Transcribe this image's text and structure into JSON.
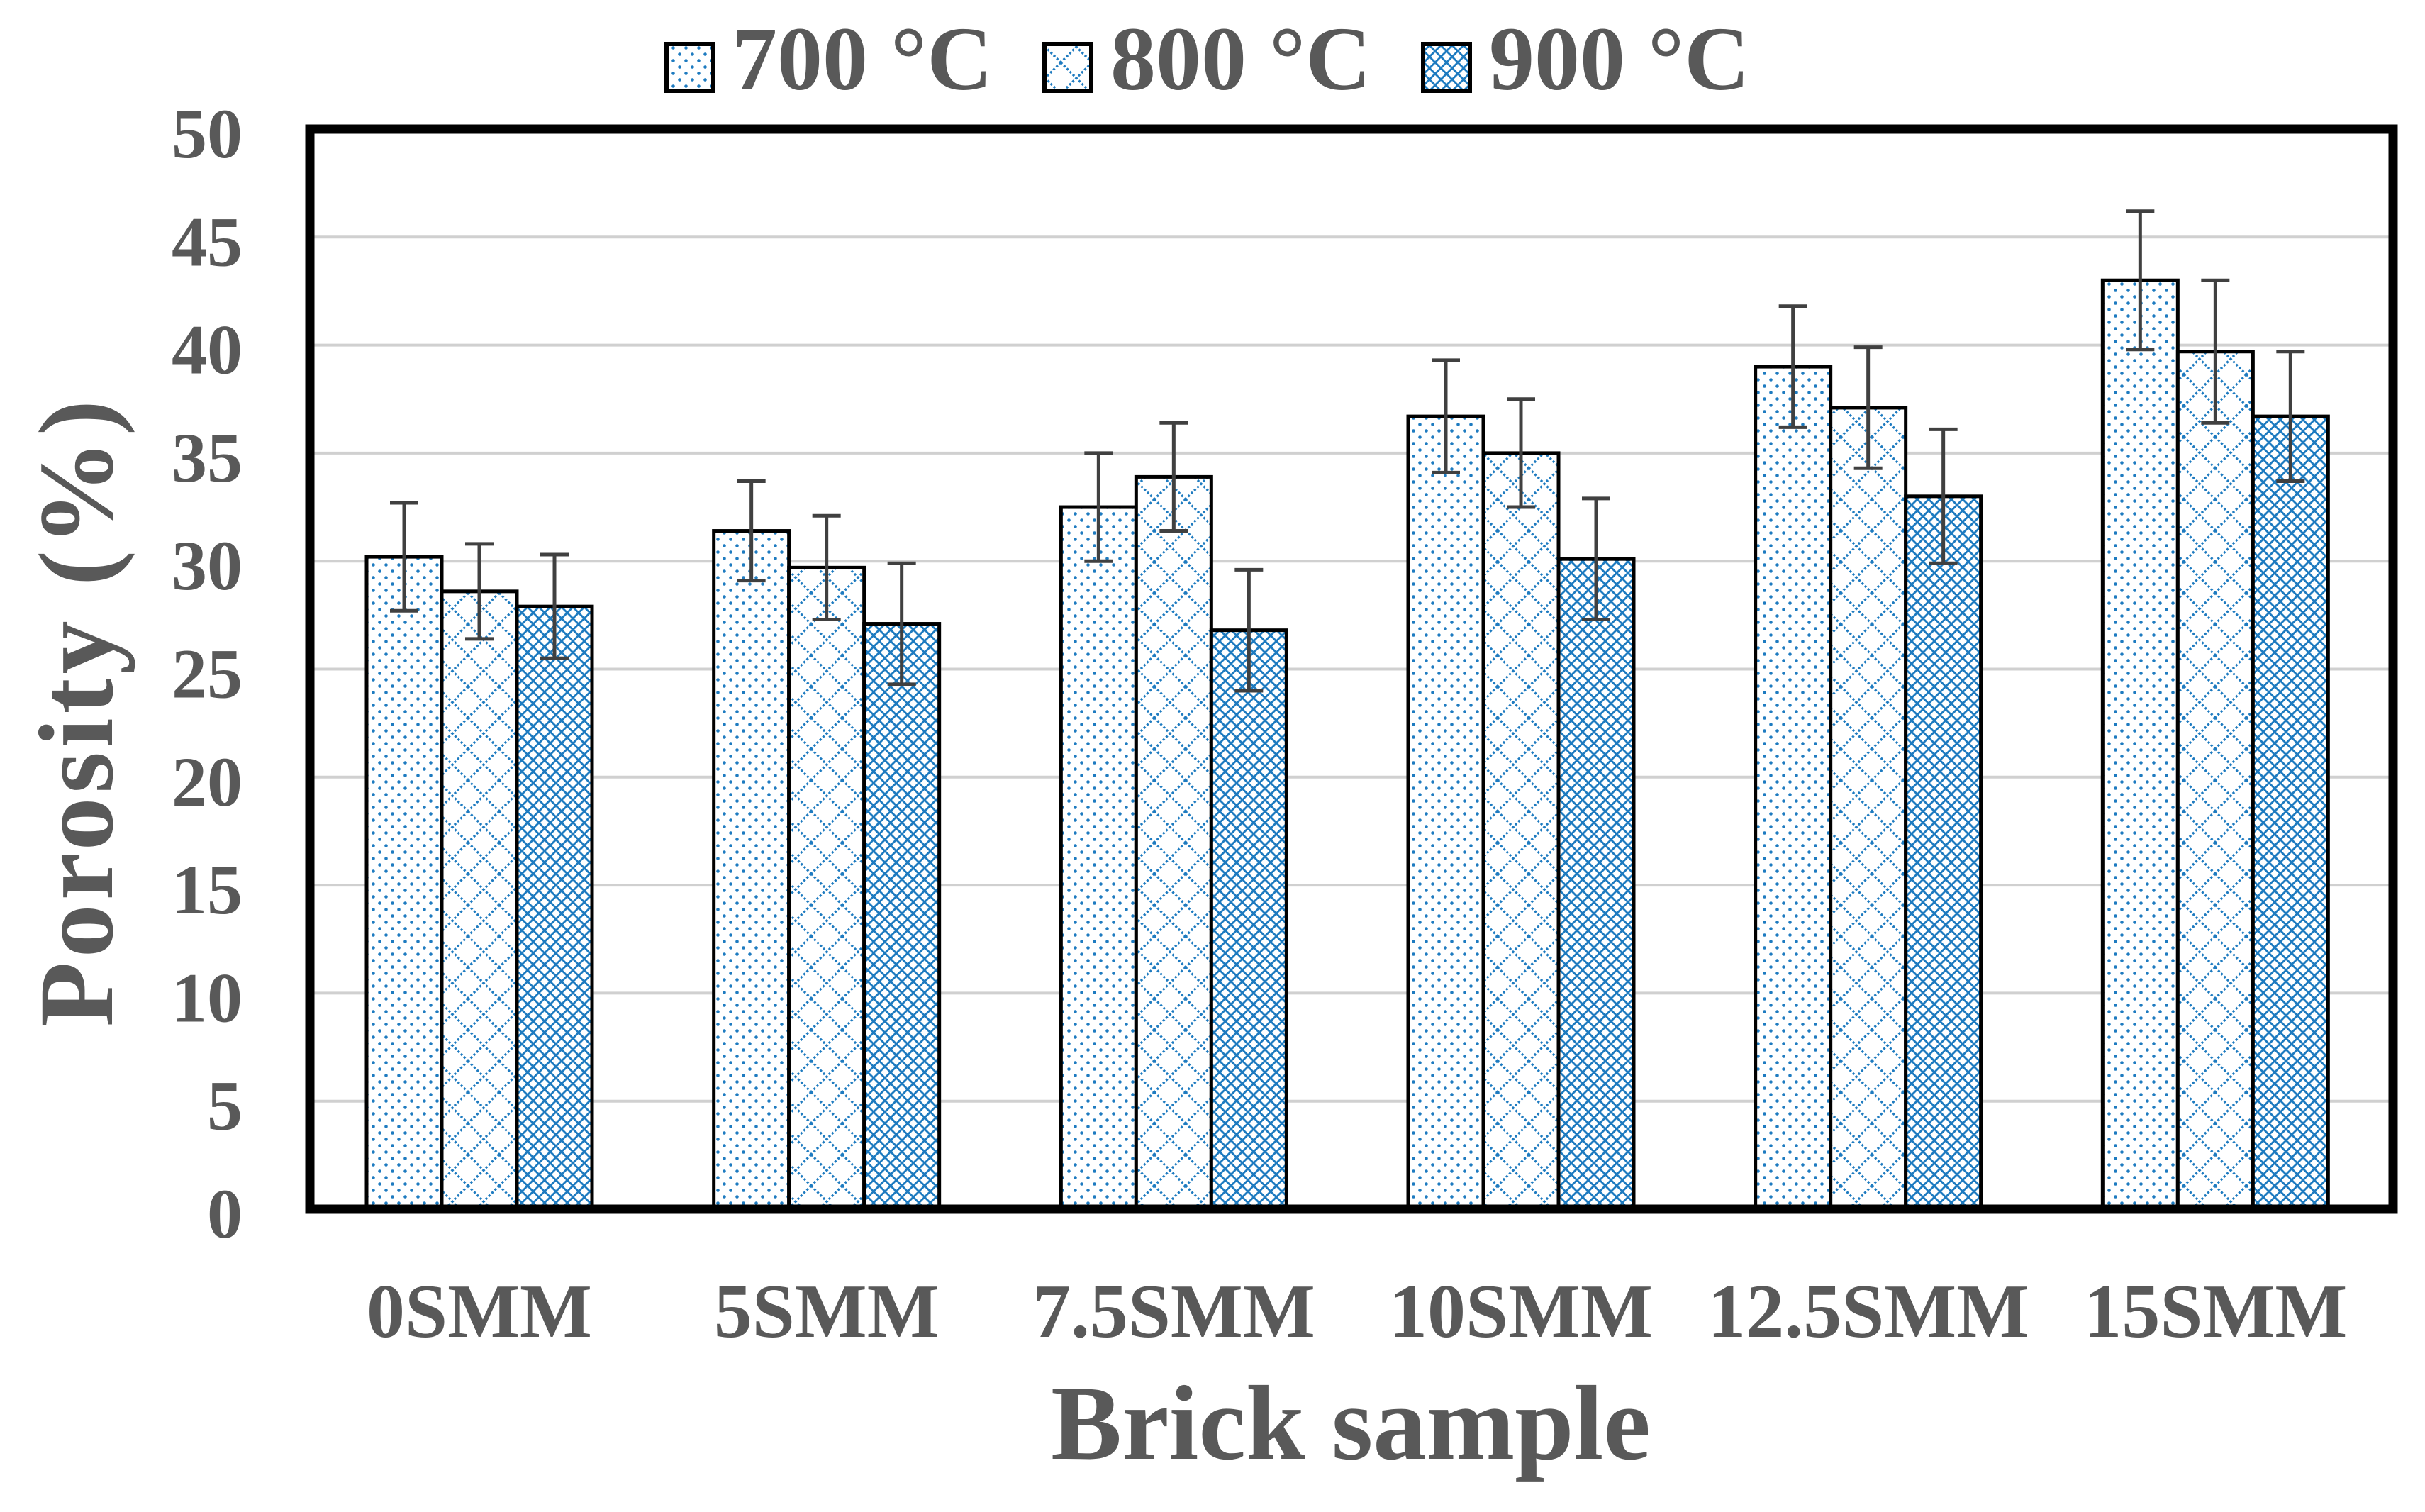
{
  "chart_data": {
    "type": "bar",
    "title": "",
    "xlabel": "Brick sample",
    "ylabel": "Porosity (%)",
    "ylim": [
      0,
      50
    ],
    "yticks": [
      0,
      5,
      10,
      15,
      20,
      25,
      30,
      35,
      40,
      45,
      50
    ],
    "grid": true,
    "legend_position": "top-center",
    "categories": [
      "0SMM",
      "5SMM",
      "7.5SMM",
      "10SMM",
      "12.5SMM",
      "15SMM"
    ],
    "series": [
      {
        "name": "700 °C",
        "pattern": "fine-dots",
        "values": [
          30.2,
          31.4,
          32.5,
          36.7,
          39.0,
          43.0
        ],
        "errors": [
          2.5,
          2.3,
          2.5,
          2.6,
          2.8,
          3.2
        ]
      },
      {
        "name": "800 °C",
        "pattern": "diamond-lattice",
        "values": [
          28.6,
          29.7,
          33.9,
          35.0,
          37.1,
          39.7
        ],
        "errors": [
          2.2,
          2.4,
          2.5,
          2.5,
          2.8,
          3.3
        ]
      },
      {
        "name": "900 °C",
        "pattern": "dense-cross-hatch",
        "values": [
          27.9,
          27.1,
          26.8,
          30.1,
          33.0,
          36.7
        ],
        "errors": [
          2.4,
          2.8,
          2.8,
          2.8,
          3.1,
          3.0
        ]
      }
    ],
    "colors": {
      "pattern_ink": "#1e7bc0",
      "bar_outline": "#000000",
      "frame": "#000000",
      "grid": "#d0d0d0",
      "text": "#595959"
    }
  }
}
